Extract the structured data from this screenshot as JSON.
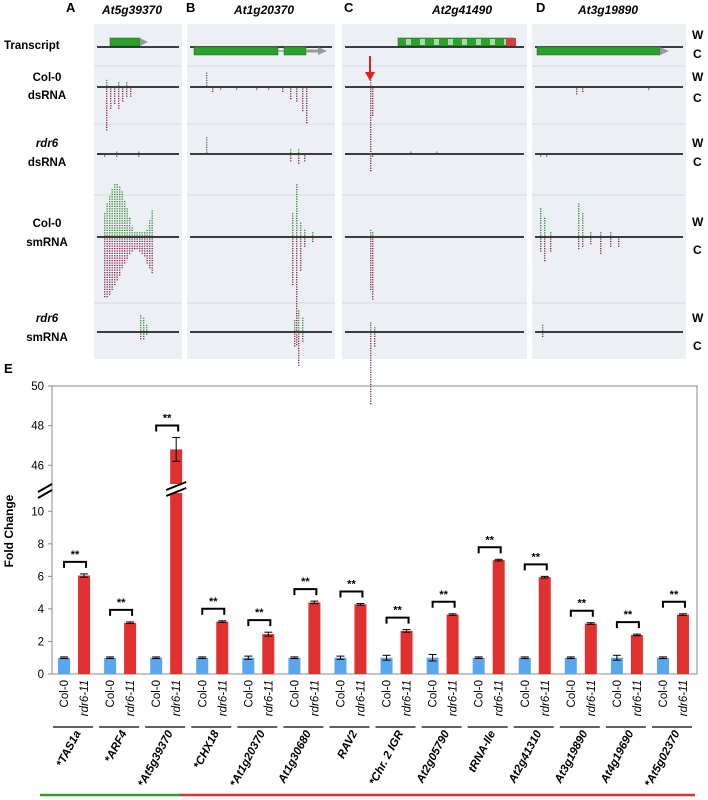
{
  "panel_letters": [
    "A",
    "B",
    "C",
    "D",
    "E"
  ],
  "gene_titles": [
    "At5g39370",
    "At1g20370",
    "At2g41490",
    "At3g19890"
  ],
  "row_labels": [
    {
      "line1": "Transcript",
      "line2": ""
    },
    {
      "line1": "Col-0",
      "line2": "dsRNA"
    },
    {
      "line1": "rdr6",
      "line2": "dsRNA"
    },
    {
      "line1": "Col-0",
      "line2": "smRNA"
    },
    {
      "line1": "rdr6",
      "line2": "smRNA"
    }
  ],
  "strand_labels": {
    "watson": "W",
    "crick": "C"
  },
  "colors": {
    "watson": "#3a8a3a",
    "crick": "#8b2f4a",
    "col0": "#5aa6ec",
    "rdr6": "#e03030",
    "gene": "#2aa12a",
    "arrow": "#e02020",
    "track_bg": "#eceff4"
  },
  "chart_data": {
    "type": "bar",
    "panel": "E",
    "ylabel": "Fold Change",
    "yticks_lower": [
      0,
      2,
      4,
      6,
      8,
      10
    ],
    "yticks_upper": [
      46,
      48,
      50
    ],
    "ylim_lower": [
      0,
      11
    ],
    "ylim_upper": [
      44.5,
      50
    ],
    "axis_break": true,
    "grid": false,
    "sample_labels": [
      "Col-0",
      "rdr6-11"
    ],
    "significance_label": "**",
    "categories": [
      "*TAS1a",
      "*ARF4",
      "*At5g39370",
      "*CHX18",
      "*At1g20370",
      "At1g30680",
      "RAV2",
      "*Chr. 2 IGR",
      "At2g05790",
      "tRNA-Ile",
      "At2g41310",
      "At3g19890",
      "At4g19690",
      "*At5g02370"
    ],
    "series": [
      {
        "name": "Col-0",
        "values": [
          1,
          1,
          1,
          1,
          1,
          1,
          1,
          1,
          1,
          1,
          1,
          1,
          1,
          1
        ],
        "errors": [
          0.05,
          0.05,
          0.05,
          0.05,
          0.1,
          0.05,
          0.1,
          0.15,
          0.2,
          0.05,
          0.05,
          0.05,
          0.15,
          0.05
        ]
      },
      {
        "name": "rdr6-11",
        "values": [
          6.05,
          3.15,
          46.8,
          3.22,
          2.45,
          4.4,
          4.28,
          2.65,
          3.65,
          7.0,
          5.95,
          3.1,
          2.4,
          3.65
        ],
        "errors": [
          0.1,
          0.05,
          0.6,
          0.05,
          0.12,
          0.08,
          0.05,
          0.08,
          0.05,
          0.05,
          0.05,
          0.05,
          0.05,
          0.05
        ]
      }
    ],
    "group_bars": [
      {
        "label": "green group",
        "color": "#2aa12a",
        "from": 0,
        "to": 2
      },
      {
        "label": "red group",
        "color": "#e03030",
        "from": 3,
        "to": 13
      }
    ]
  }
}
